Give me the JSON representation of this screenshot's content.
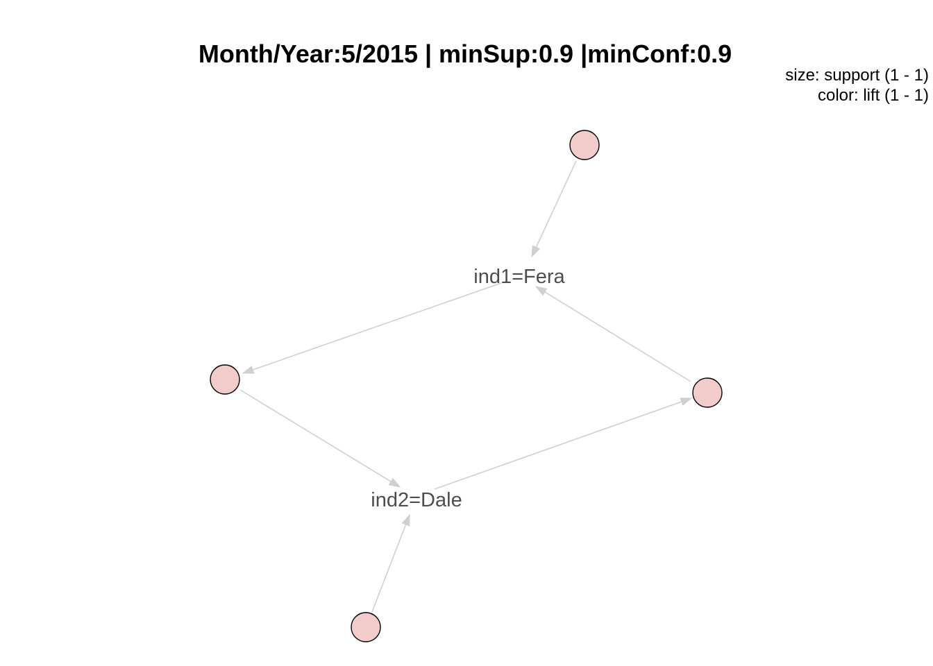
{
  "title": "Month/Year:5/2015 | minSup:0.9 |minConf:0.9",
  "legend": {
    "size_line": "size: support (1 - 1)",
    "color_line": "color: lift (1 - 1)"
  },
  "colors": {
    "rule_node_fill": "#f2cbcb",
    "rule_node_stroke": "#000000",
    "edge": "#cfcfcf",
    "item_label": "#4d4d4d"
  },
  "graph": {
    "item_nodes": [
      {
        "id": "fera",
        "label": "ind1=Fera"
      },
      {
        "id": "dale",
        "label": "ind2=Dale"
      }
    ],
    "rule_nodes": [
      {
        "id": "rule-top"
      },
      {
        "id": "rule-left"
      },
      {
        "id": "rule-right"
      },
      {
        "id": "rule-bottom"
      }
    ],
    "edges": [
      {
        "from": "rule-top",
        "to": "fera"
      },
      {
        "from": "fera",
        "to": "rule-left"
      },
      {
        "from": "rule-left",
        "to": "dale"
      },
      {
        "from": "dale",
        "to": "rule-right"
      },
      {
        "from": "rule-right",
        "to": "fera"
      },
      {
        "from": "rule-bottom",
        "to": "dale"
      }
    ]
  }
}
